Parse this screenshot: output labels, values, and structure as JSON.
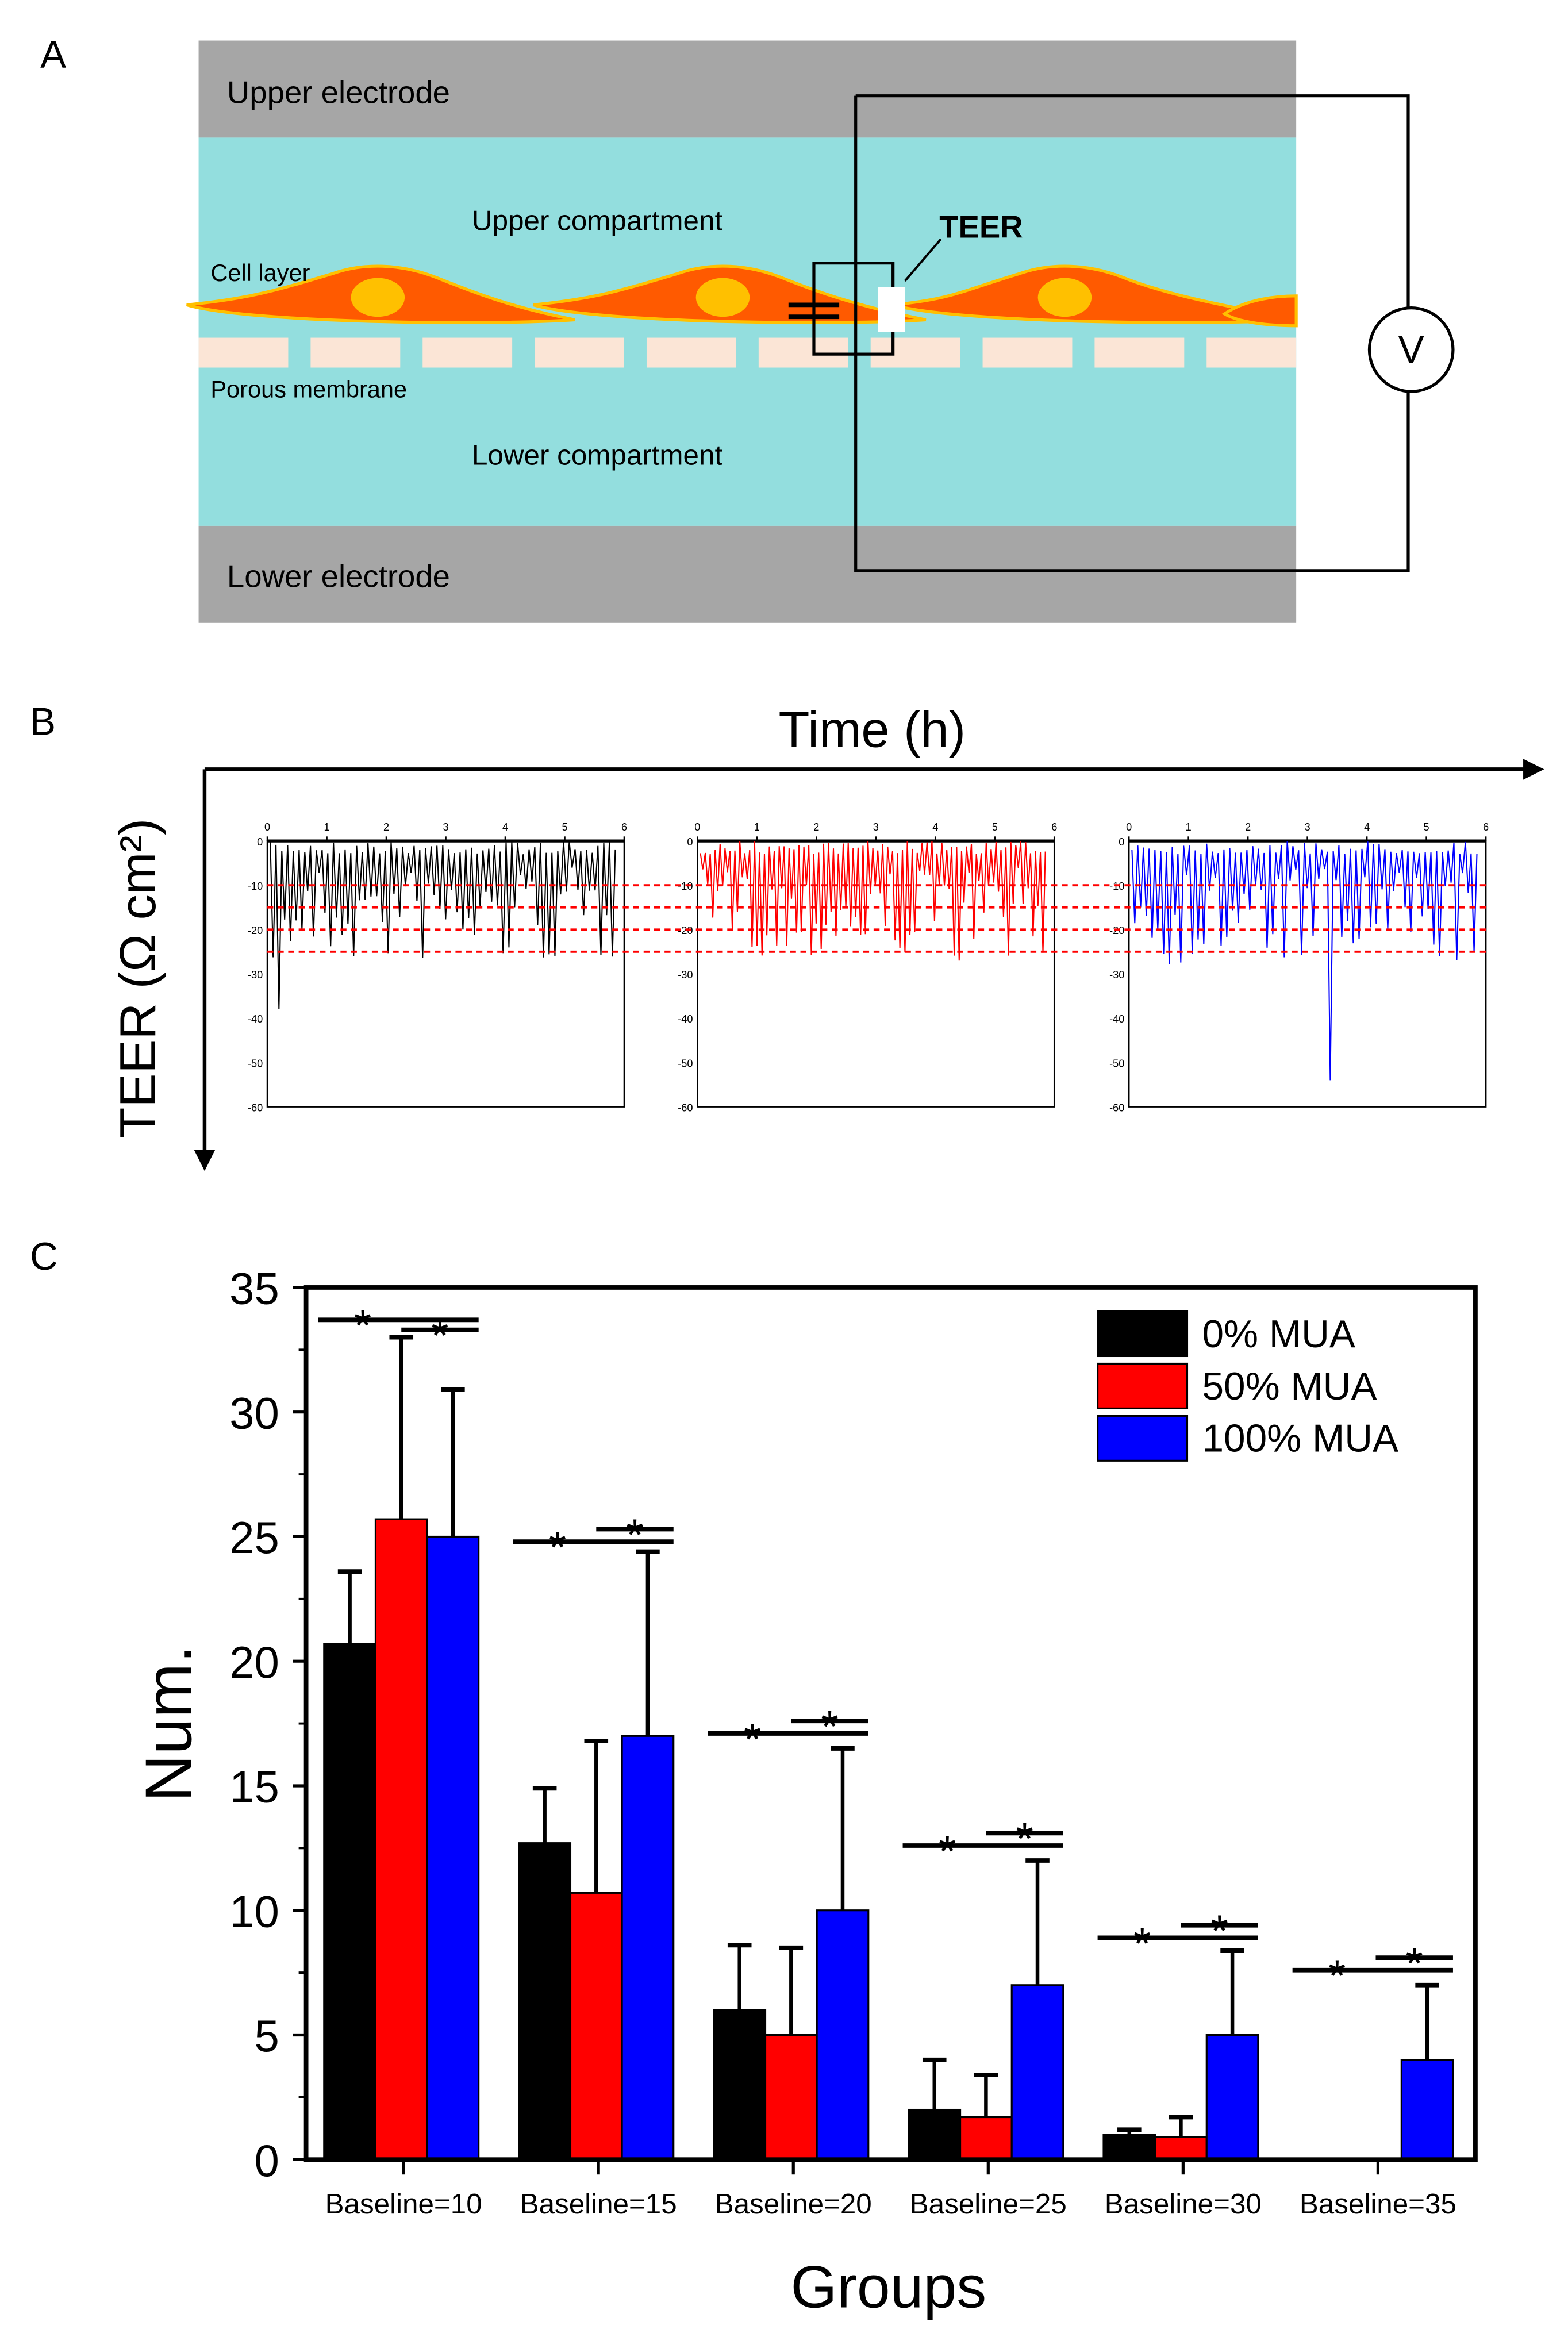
{
  "panels": {
    "a": "A",
    "b": "B",
    "c": "C"
  },
  "diagram": {
    "upper_electrode": "Upper electrode",
    "lower_electrode": "Lower electrode",
    "upper_compartment": "Upper compartment",
    "lower_compartment": "Lower compartment",
    "cell_layer": "Cell layer",
    "porous_membrane": "Porous membrane",
    "teer": "TEER",
    "voltmeter": "V",
    "colors": {
      "electrode": "#a6a6a6",
      "medium": "#93dede",
      "cell": "#ff5a00",
      "cell_edge": "#ffc000",
      "nucleus": "#ffc000",
      "pore": "#fbe5d6"
    }
  },
  "chart_data": [
    {
      "type": "line",
      "title": "",
      "xlabel": "Time (h)",
      "ylabel": "TEER (Ω cm²)",
      "xlim": [
        0,
        6
      ],
      "ylim": [
        -60,
        0
      ],
      "xticks": [
        "0",
        "1",
        "2",
        "3",
        "4",
        "5",
        "6"
      ],
      "yticks": [
        "0",
        "-10",
        "-20",
        "-30",
        "-40",
        "-50",
        "-60"
      ],
      "threshold_lines": [
        -10,
        -15,
        -20,
        -25
      ],
      "threshold_color": "#ff0000",
      "series": [
        {
          "name": "0% MUA",
          "color": "#000000",
          "min": -38,
          "peaks": 120
        },
        {
          "name": "50% MUA",
          "color": "#ff0000",
          "min": -27,
          "peaks": 140
        },
        {
          "name": "100% MUA",
          "color": "#0000ff",
          "min": -54,
          "peaks": 120
        }
      ]
    },
    {
      "type": "bar",
      "title": "",
      "xlabel": "Groups",
      "ylabel": "Num.",
      "ylim": [
        0,
        35
      ],
      "yticks": [
        "0",
        "5",
        "10",
        "15",
        "20",
        "25",
        "30",
        "35"
      ],
      "categories": [
        "Baseline=10",
        "Baseline=15",
        "Baseline=20",
        "Baseline=25",
        "Baseline=30",
        "Baseline=35"
      ],
      "series": [
        {
          "name": "0% MUA",
          "color": "#000000",
          "values": [
            20.7,
            12.7,
            6,
            2,
            1,
            0
          ],
          "error_upper": [
            23.6,
            14.9,
            8.6,
            4,
            1.2,
            0
          ]
        },
        {
          "name": "50% MUA",
          "color": "#ff0000",
          "values": [
            25.7,
            10.7,
            5,
            1.7,
            0.9,
            0
          ],
          "error_upper": [
            33,
            16.8,
            8.5,
            3.4,
            1.7,
            0
          ]
        },
        {
          "name": "100% MUA",
          "color": "#0000ff",
          "values": [
            25,
            17,
            10,
            7,
            5,
            4
          ],
          "error_upper": [
            30.9,
            24.4,
            16.5,
            12,
            8.4,
            7
          ]
        }
      ],
      "significance": {
        "marker": "*",
        "brackets": [
          [
            33.7,
            33.3
          ],
          [
            24.8,
            25.3
          ],
          [
            17.1,
            17.6
          ],
          [
            12.6,
            13.1
          ],
          [
            8.9,
            9.4
          ],
          [
            7.6,
            8.1
          ]
        ]
      },
      "legend": "top-right"
    }
  ]
}
